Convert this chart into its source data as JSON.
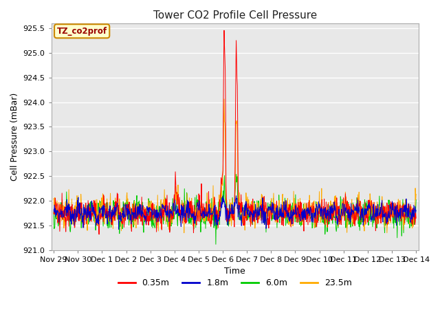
{
  "title": "Tower CO2 Profile Cell Pressure",
  "xlabel": "Time",
  "ylabel": "Cell Pressure (mBar)",
  "ylim": [
    921.0,
    925.6
  ],
  "yticks": [
    921.0,
    921.5,
    922.0,
    922.5,
    923.0,
    923.5,
    924.0,
    924.5,
    925.0,
    925.5
  ],
  "fig_bg_color": "#ffffff",
  "plot_bg_color": "#e8e8e8",
  "line_colors": {
    "0.35m": "#ff0000",
    "1.8m": "#0000cc",
    "6.0m": "#00cc00",
    "23.5m": "#ffaa00"
  },
  "annotation_text": "TZ_co2prof",
  "annotation_box_color": "#ffffcc",
  "annotation_border_color": "#cc8800",
  "x_tick_labels": [
    "Nov 29",
    "Nov 30",
    "Dec 1",
    "Dec 2",
    "Dec 3",
    "Dec 4",
    "Dec 5",
    "Dec 6",
    "Dec 7",
    "Dec 8",
    "Dec 9",
    "Dec 10",
    "Dec 11",
    "Dec 12",
    "Dec 13",
    "Dec 14"
  ],
  "n_points": 960,
  "base_pressure": 921.75,
  "noise_std": 0.13
}
